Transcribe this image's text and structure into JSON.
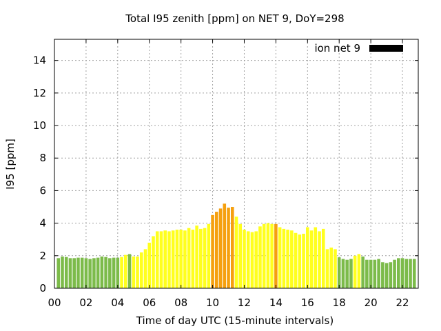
{
  "chart_data": {
    "type": "bar",
    "title": "Total I95 zenith [ppm] on NET 9, DoY=298",
    "xlabel": "Time of day UTC (15-minute intervals)",
    "ylabel": "I95 [ppm]",
    "legend": {
      "label": "ion net 9",
      "color": "#000000",
      "position": "top-right"
    },
    "grid": true,
    "xlim": [
      0,
      23
    ],
    "ylim": [
      0,
      15.3
    ],
    "x_ticks": [
      "00",
      "02",
      "04",
      "06",
      "08",
      "10",
      "12",
      "14",
      "16",
      "18",
      "20",
      "22"
    ],
    "y_ticks": [
      "0",
      "2",
      "4",
      "6",
      "8",
      "10",
      "12",
      "14"
    ],
    "bar_width_hours": 0.2,
    "category_colors": {
      "green": "#7cbb4a",
      "yellow": "#ffff1e",
      "orange": "#f5a00f"
    },
    "x": [
      0.25,
      0.5,
      0.75,
      1.0,
      1.25,
      1.5,
      1.75,
      2.0,
      2.25,
      2.5,
      2.75,
      3.0,
      3.25,
      3.5,
      3.75,
      4.0,
      4.25,
      4.5,
      4.75,
      5.0,
      5.25,
      5.5,
      5.75,
      6.0,
      6.25,
      6.5,
      6.75,
      7.0,
      7.25,
      7.5,
      7.75,
      8.0,
      8.25,
      8.5,
      8.75,
      9.0,
      9.25,
      9.5,
      9.75,
      10.0,
      10.25,
      10.5,
      10.75,
      11.0,
      11.25,
      11.5,
      11.75,
      12.0,
      12.25,
      12.5,
      12.75,
      13.0,
      13.25,
      13.5,
      13.75,
      14.0,
      14.25,
      14.5,
      14.75,
      15.0,
      15.25,
      15.5,
      15.75,
      16.0,
      16.25,
      16.5,
      16.75,
      17.0,
      17.25,
      17.5,
      17.75,
      18.0,
      18.25,
      18.5,
      18.75,
      19.0,
      19.25,
      19.5,
      19.75,
      20.0,
      20.25,
      20.5,
      20.75,
      21.0,
      21.25,
      21.5,
      21.75,
      22.0,
      22.25,
      22.5,
      22.75
    ],
    "values": [
      1.85,
      1.95,
      1.92,
      1.85,
      1.85,
      1.88,
      1.88,
      1.85,
      1.8,
      1.85,
      1.88,
      1.95,
      1.92,
      1.85,
      1.88,
      1.88,
      1.92,
      2.05,
      2.1,
      1.95,
      1.95,
      2.2,
      2.4,
      2.8,
      3.2,
      3.5,
      3.5,
      3.55,
      3.5,
      3.55,
      3.6,
      3.6,
      3.55,
      3.7,
      3.6,
      3.85,
      3.65,
      3.7,
      3.95,
      4.5,
      4.7,
      4.9,
      5.2,
      4.95,
      5.0,
      4.4,
      3.95,
      3.6,
      3.5,
      3.45,
      3.5,
      3.8,
      3.95,
      4.0,
      3.95,
      3.95,
      3.75,
      3.65,
      3.6,
      3.55,
      3.4,
      3.3,
      3.35,
      3.75,
      3.55,
      3.75,
      3.5,
      3.65,
      2.4,
      2.5,
      2.4,
      1.9,
      1.8,
      1.75,
      1.8,
      2.0,
      2.1,
      1.95,
      1.75,
      1.75,
      1.75,
      1.8,
      1.6,
      1.55,
      1.6,
      1.75,
      1.85,
      1.85,
      1.8,
      1.8,
      1.8
    ],
    "categories": [
      "green",
      "green",
      "green",
      "green",
      "green",
      "green",
      "green",
      "green",
      "green",
      "green",
      "green",
      "green",
      "green",
      "green",
      "green",
      "green",
      "yellow",
      "yellow",
      "green",
      "yellow",
      "yellow",
      "yellow",
      "yellow",
      "yellow",
      "yellow",
      "yellow",
      "yellow",
      "yellow",
      "yellow",
      "yellow",
      "yellow",
      "yellow",
      "yellow",
      "yellow",
      "yellow",
      "yellow",
      "yellow",
      "yellow",
      "yellow",
      "orange",
      "orange",
      "orange",
      "orange",
      "orange",
      "orange",
      "yellow",
      "yellow",
      "yellow",
      "yellow",
      "yellow",
      "yellow",
      "yellow",
      "yellow",
      "yellow",
      "yellow",
      "orange",
      "yellow",
      "yellow",
      "yellow",
      "yellow",
      "yellow",
      "yellow",
      "yellow",
      "yellow",
      "yellow",
      "yellow",
      "yellow",
      "yellow",
      "yellow",
      "yellow",
      "yellow",
      "green",
      "green",
      "green",
      "green",
      "yellow",
      "yellow",
      "green",
      "green",
      "green",
      "green",
      "green",
      "green",
      "green",
      "green",
      "green",
      "green",
      "green",
      "green",
      "green",
      "green"
    ]
  }
}
